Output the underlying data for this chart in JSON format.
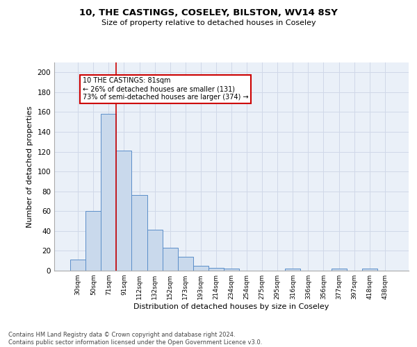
{
  "title1": "10, THE CASTINGS, COSELEY, BILSTON, WV14 8SY",
  "title2": "Size of property relative to detached houses in Coseley",
  "xlabel": "Distribution of detached houses by size in Coseley",
  "ylabel": "Number of detached properties",
  "bar_labels": [
    "30sqm",
    "50sqm",
    "71sqm",
    "91sqm",
    "112sqm",
    "132sqm",
    "152sqm",
    "173sqm",
    "193sqm",
    "214sqm",
    "234sqm",
    "254sqm",
    "275sqm",
    "295sqm",
    "316sqm",
    "336sqm",
    "356sqm",
    "377sqm",
    "397sqm",
    "418sqm",
    "438sqm"
  ],
  "bar_values": [
    11,
    60,
    158,
    121,
    76,
    41,
    23,
    14,
    5,
    3,
    2,
    0,
    0,
    0,
    2,
    0,
    0,
    2,
    0,
    2,
    0
  ],
  "bar_color": "#c9d9ec",
  "bar_edge_color": "#5b8ec9",
  "grid_color": "#d0d8e8",
  "background_color": "#eaf0f8",
  "red_line_x": 2.5,
  "annotation_text": "10 THE CASTINGS: 81sqm\n← 26% of detached houses are smaller (131)\n73% of semi-detached houses are larger (374) →",
  "annotation_box_color": "#ffffff",
  "annotation_box_edge": "#cc0000",
  "footer_text": "Contains HM Land Registry data © Crown copyright and database right 2024.\nContains public sector information licensed under the Open Government Licence v3.0.",
  "ylim": [
    0,
    210
  ],
  "yticks": [
    0,
    20,
    40,
    60,
    80,
    100,
    120,
    140,
    160,
    180,
    200
  ]
}
